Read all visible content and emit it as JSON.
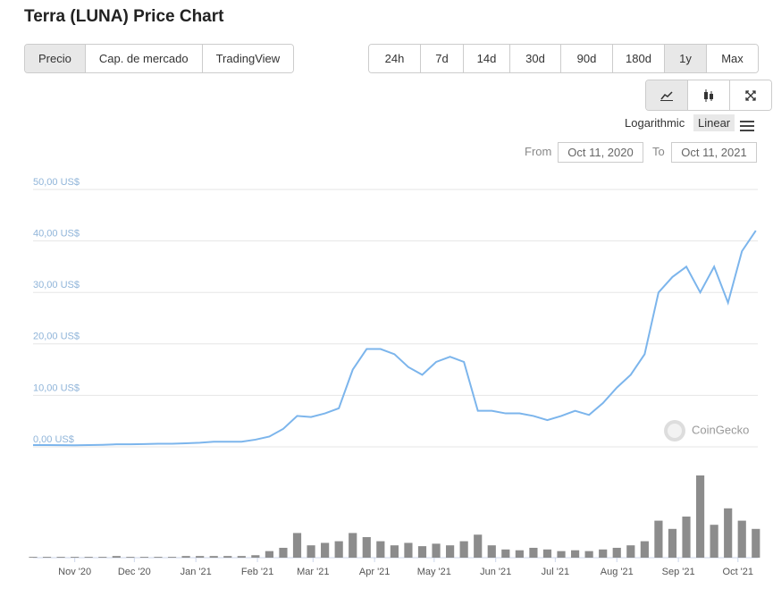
{
  "header": {
    "title": "Terra (LUNA) Price Chart"
  },
  "tabs": [
    "Precio",
    "Cap. de mercado",
    "TradingView"
  ],
  "ranges": [
    "24h",
    "7d",
    "14d",
    "30d",
    "90d",
    "180d",
    "1y",
    "Max"
  ],
  "scale_options": [
    "Logarithmic",
    "Linear"
  ],
  "date_range": {
    "from_label": "From",
    "from": "Oct 11, 2020",
    "to_label": "To",
    "to": "Oct 11, 2021"
  },
  "watermark": "CoinGecko",
  "chart_data": {
    "type": "line",
    "x": [
      "2020-10-11",
      "2020-10-18",
      "2020-10-25",
      "2020-11-01",
      "2020-11-08",
      "2020-11-15",
      "2020-11-22",
      "2020-11-29",
      "2020-12-06",
      "2020-12-13",
      "2020-12-20",
      "2020-12-27",
      "2021-01-03",
      "2021-01-10",
      "2021-01-17",
      "2021-01-24",
      "2021-01-31",
      "2021-02-07",
      "2021-02-14",
      "2021-02-21",
      "2021-02-28",
      "2021-03-07",
      "2021-03-14",
      "2021-03-21",
      "2021-03-28",
      "2021-04-04",
      "2021-04-11",
      "2021-04-18",
      "2021-04-25",
      "2021-05-02",
      "2021-05-09",
      "2021-05-16",
      "2021-05-23",
      "2021-05-30",
      "2021-06-06",
      "2021-06-13",
      "2021-06-20",
      "2021-06-27",
      "2021-07-04",
      "2021-07-11",
      "2021-07-18",
      "2021-07-25",
      "2021-08-01",
      "2021-08-08",
      "2021-08-15",
      "2021-08-22",
      "2021-08-29",
      "2021-09-05",
      "2021-09-12",
      "2021-09-19",
      "2021-09-26",
      "2021-10-03",
      "2021-10-10"
    ],
    "series": [
      {
        "color": "#7cb5ec",
        "values": [
          0.35,
          0.35,
          0.33,
          0.3,
          0.35,
          0.4,
          0.5,
          0.5,
          0.55,
          0.6,
          0.6,
          0.7,
          0.8,
          1.0,
          1.0,
          1.0,
          1.4,
          2.0,
          3.5,
          6.0,
          5.8,
          6.5,
          7.5,
          15,
          19,
          19,
          18,
          15.5,
          14,
          16.5,
          17.5,
          16.5,
          7,
          7,
          6.5,
          6.5,
          6,
          5.2,
          6,
          7,
          6.2,
          8.5,
          11.5,
          14,
          18,
          30,
          33,
          35,
          30,
          35,
          28,
          38,
          42
        ]
      }
    ],
    "volume": [
      1,
      1,
      1,
      1,
      1,
      1,
      2,
      1,
      1,
      1,
      1,
      2,
      2,
      2,
      2,
      2,
      3,
      8,
      12,
      30,
      15,
      18,
      20,
      30,
      25,
      20,
      15,
      18,
      14,
      17,
      15,
      20,
      28,
      15,
      10,
      9,
      12,
      10,
      8,
      9,
      8,
      10,
      12,
      15,
      20,
      45,
      35,
      50,
      100,
      40,
      60,
      45,
      35
    ],
    "volume_color": "#8c8c8c",
    "xlim": [
      "2020-10-11",
      "2021-10-11"
    ],
    "xticks": [
      {
        "value": "2020-11-01",
        "label": "Nov '20"
      },
      {
        "value": "2020-12-01",
        "label": "Dec '20"
      },
      {
        "value": "2021-01-01",
        "label": "Jan '21"
      },
      {
        "value": "2021-02-01",
        "label": "Feb '21"
      },
      {
        "value": "2021-03-01",
        "label": "Mar '21"
      },
      {
        "value": "2021-04-01",
        "label": "Apr '21"
      },
      {
        "value": "2021-05-01",
        "label": "May '21"
      },
      {
        "value": "2021-06-01",
        "label": "Jun '21"
      },
      {
        "value": "2021-07-01",
        "label": "Jul '21"
      },
      {
        "value": "2021-08-01",
        "label": "Aug '21"
      },
      {
        "value": "2021-09-01",
        "label": "Sep '21"
      },
      {
        "value": "2021-10-01",
        "label": "Oct '21"
      }
    ],
    "ylim": [
      0,
      50
    ],
    "yticks": [
      {
        "value": 0,
        "label": "0,00 US$"
      },
      {
        "value": 10,
        "label": "10,00 US$"
      },
      {
        "value": 20,
        "label": "20,00 US$"
      },
      {
        "value": 30,
        "label": "30,00 US$"
      },
      {
        "value": 40,
        "label": "40,00 US$"
      },
      {
        "value": 50,
        "label": "50,00 US$"
      }
    ],
    "grid": true
  }
}
